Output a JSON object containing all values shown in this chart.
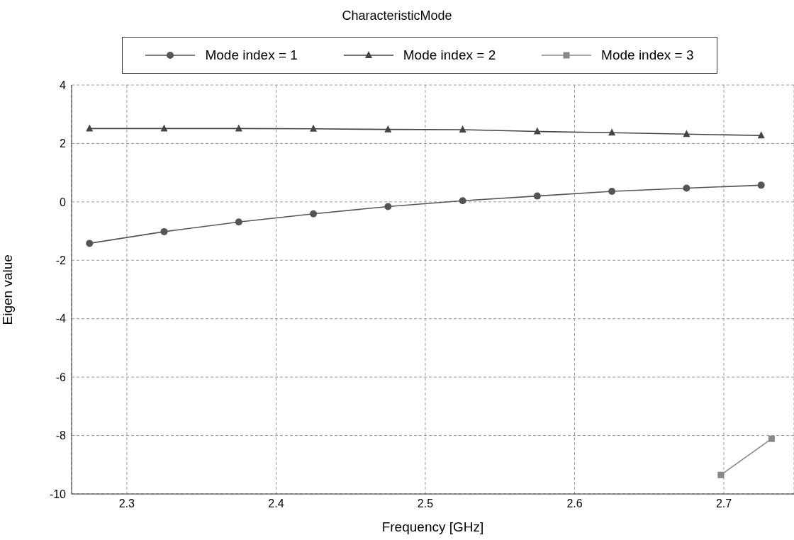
{
  "chart_data": {
    "type": "line",
    "title": "CharacteristicMode",
    "xlabel": "Frequency [GHz]",
    "ylabel": "Eigen value",
    "xlim": [
      2.263,
      2.747
    ],
    "xticks": [
      2.3,
      2.4,
      2.5,
      2.6,
      2.7
    ],
    "ylim": [
      -10,
      4
    ],
    "yticks": [
      -10,
      -8,
      -6,
      -4,
      -2,
      0,
      2,
      4
    ],
    "grid": true,
    "legend": "top",
    "line_style": "solid",
    "series": [
      {
        "name": "Mode index = 1",
        "color": "#555555",
        "marker": "circle",
        "x": [
          2.275,
          2.325,
          2.375,
          2.425,
          2.475,
          2.525,
          2.575,
          2.625,
          2.675,
          2.725
        ],
        "values": [
          -1.42,
          -1.02,
          -0.69,
          -0.41,
          -0.16,
          0.04,
          0.2,
          0.36,
          0.47,
          0.57
        ]
      },
      {
        "name": "Mode index = 2",
        "color": "#444444",
        "marker": "triangle",
        "x": [
          2.275,
          2.325,
          2.375,
          2.425,
          2.475,
          2.525,
          2.575,
          2.625,
          2.675,
          2.725
        ],
        "values": [
          2.51,
          2.51,
          2.51,
          2.5,
          2.48,
          2.47,
          2.41,
          2.37,
          2.32,
          2.27
        ]
      },
      {
        "name": "Mode index = 3",
        "color": "#888888",
        "marker": "square",
        "x": [
          2.698,
          2.732
        ],
        "values": [
          -9.35,
          -8.11
        ]
      }
    ]
  }
}
